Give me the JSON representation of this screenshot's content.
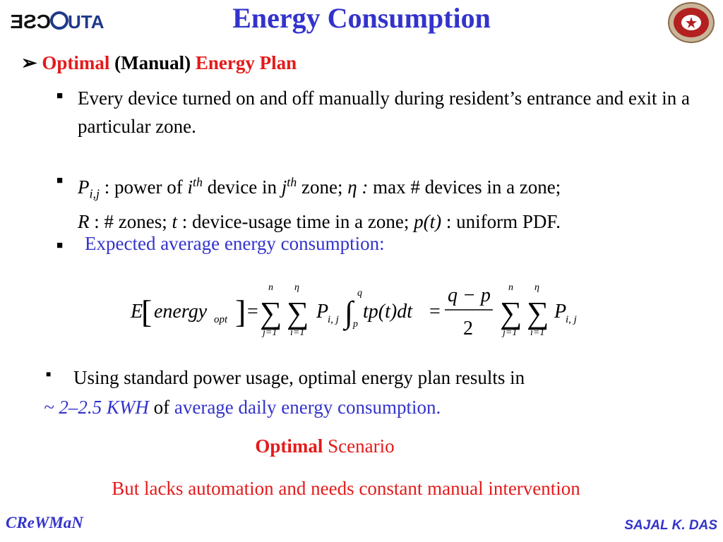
{
  "logo_left": {
    "text1": "CSE",
    "text2": "UTA"
  },
  "title": "Energy Consumption",
  "heading": {
    "part1": "Optimal",
    "part2": "(Manual)",
    "part3": "Energy Plan"
  },
  "bullet1": {
    "text": "Every device turned on and off manually during resident’s entrance and exit in a particular zone."
  },
  "bullet2": {
    "sym_p": "P",
    "sub_ij": "i,j",
    "t1": " : power of ",
    "sym_i": "i",
    "sup_th1": "th",
    "t2": " device in ",
    "sym_j": "j",
    "sup_th2": "th",
    "t3": " zone; ",
    "sym_eta": "η :",
    "t4": " max # devices in a zone;",
    "sym_r": "R",
    "t5": " : # zones; ",
    "sym_t": "t",
    "t6": " : device-usage time in a zone; ",
    "sym_pt": "p(t)",
    "t7": " : uniform PDF."
  },
  "bullet3": {
    "text": "Expected average energy consumption:"
  },
  "equation": {
    "E": "E",
    "energy": "energy",
    "opt": "opt",
    "eq": "=",
    "sum_upper_n": "n",
    "sum_upper_eta": "η",
    "sum_lower_j": "j=1",
    "sum_lower_i": "i=1",
    "P": "P",
    "Pij": "i, j",
    "int_upper": "q",
    "int_lower": "p",
    "integrand": "tp(t)dt",
    "numerator": "q − p",
    "denominator": "2"
  },
  "bullet4": {
    "t1": "Using standard power usage, optimal energy plan results in",
    "t2": "~ 2–2.5 KWH",
    "t3": " of ",
    "t4": "average daily energy consumption."
  },
  "scenario": {
    "part1": "Optimal",
    "part2": " Scenario"
  },
  "lacks": "But lacks automation and needs constant manual intervention",
  "footer": {
    "left": "CReWMaN",
    "right": "SAJAL K. DAS"
  },
  "colors": {
    "title_blue": "#3333cc",
    "accent_red": "#e41a1a"
  }
}
